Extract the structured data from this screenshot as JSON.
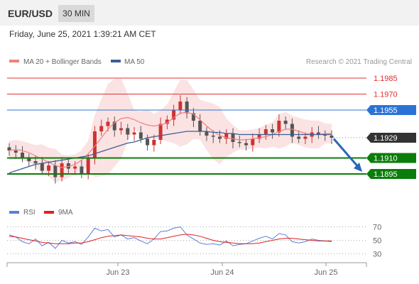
{
  "header": {
    "pair": "EUR/USD",
    "interval": "30 MIN"
  },
  "datetime": "Friday, June 25, 2021 1:39:21 AM CET",
  "legend": {
    "ma20": "MA 20 + Bollinger Bands",
    "ma50": "MA 50",
    "rsi": "RSI",
    "ma9": "9MA"
  },
  "watermark": "Research © 2021 Trading Central",
  "colors": {
    "resistance": "#e03030",
    "pivot": "#2a73d6",
    "support": "#0a7d0a",
    "current": "#333333",
    "ma20": "#f08080",
    "ma50": "#3a5f95",
    "bollinger_fill": "#fbe3e3",
    "rsi": "#5b7fd6",
    "rsi_ma": "#e02020",
    "candle_up": "#cc3333",
    "candle_down": "#555555",
    "arrow": "#2a66b8"
  },
  "chart_data": [
    {
      "type": "candlestick",
      "title": "EUR/USD",
      "x_ticks": [
        "Jun 23",
        "Jun 24",
        "Jun 25"
      ],
      "ylim": [
        1.1875,
        1.1995
      ],
      "levels": [
        {
          "value": 1.1985,
          "label": "1.1985",
          "kind": "resistance"
        },
        {
          "value": 1.197,
          "label": "1.1970",
          "kind": "resistance"
        },
        {
          "value": 1.1955,
          "label": "1.1955",
          "kind": "pivot"
        },
        {
          "value": 1.1929,
          "label": "1.1929",
          "kind": "current"
        },
        {
          "value": 1.191,
          "label": "1.1910",
          "kind": "support"
        },
        {
          "value": 1.1895,
          "label": "1.1895",
          "kind": "support"
        }
      ],
      "forecast_arrow": {
        "from": 1.1928,
        "to": 1.1897
      },
      "series": [
        {
          "name": "MA 20",
          "values": [
            1.1917,
            1.1918,
            1.1917,
            1.1915,
            1.1912,
            1.1909,
            1.1906,
            1.1903,
            1.1901,
            1.1902,
            1.1904,
            1.1908,
            1.1914,
            1.1921,
            1.1929,
            1.1937,
            1.1943,
            1.1947,
            1.1948,
            1.1946,
            1.1943,
            1.1941,
            1.194,
            1.1941,
            1.1943,
            1.1948,
            1.1952,
            1.1953,
            1.1951,
            1.1946,
            1.194,
            1.1935,
            1.1931,
            1.1929,
            1.1928,
            1.1927,
            1.1927,
            1.1928,
            1.1929,
            1.193,
            1.1932,
            1.1935,
            1.1937,
            1.1937,
            1.1935,
            1.1933,
            1.1932,
            1.1932,
            1.1933,
            1.1933
          ]
        },
        {
          "name": "MA 50",
          "values": [
            1.1896,
            1.1898,
            1.19,
            1.1902,
            1.1904,
            1.1905,
            1.1906,
            1.1907,
            1.1908,
            1.1909,
            1.191,
            1.1911,
            1.1912,
            1.1914,
            1.1916,
            1.1918,
            1.192,
            1.1922,
            1.1924,
            1.1925,
            1.1927,
            1.1929,
            1.193,
            1.1931,
            1.1932,
            1.1933,
            1.1934,
            1.1935,
            1.1935,
            1.1935,
            1.1935,
            1.1934,
            1.1934,
            1.1933,
            1.1933,
            1.1932,
            1.1932,
            1.1932,
            1.1932,
            1.1932,
            1.1932,
            1.1932,
            1.1932,
            1.1932,
            1.1932,
            1.1932,
            1.1932,
            1.1932,
            1.1932,
            1.1932
          ]
        },
        {
          "name": "Close",
          "values": [
            1.1917,
            1.1915,
            1.191,
            1.1907,
            1.1905,
            1.1898,
            1.1903,
            1.1892,
            1.1905,
            1.19,
            1.1902,
            1.1895,
            1.191,
            1.1935,
            1.194,
            1.1944,
            1.1936,
            1.1938,
            1.1932,
            1.1934,
            1.1928,
            1.1922,
            1.1927,
            1.1942,
            1.1946,
            1.1955,
            1.1963,
            1.1952,
            1.1945,
            1.1935,
            1.1931,
            1.193,
            1.1928,
            1.1933,
            1.1925,
            1.1924,
            1.1922,
            1.1928,
            1.1932,
            1.1937,
            1.1934,
            1.1945,
            1.1942,
            1.193,
            1.1928,
            1.193,
            1.1934,
            1.1932,
            1.1931,
            1.1929
          ]
        }
      ]
    },
    {
      "type": "line",
      "title": "RSI",
      "y_ticks": [
        70,
        50,
        30
      ],
      "ylim": [
        20,
        80
      ],
      "series": [
        {
          "name": "RSI",
          "values": [
            58,
            55,
            48,
            45,
            52,
            42,
            47,
            38,
            50,
            46,
            48,
            44,
            55,
            68,
            64,
            66,
            55,
            58,
            52,
            54,
            49,
            45,
            52,
            63,
            64,
            68,
            70,
            58,
            52,
            46,
            44,
            45,
            43,
            49,
            42,
            44,
            45,
            49,
            53,
            56,
            52,
            60,
            58,
            48,
            46,
            48,
            52,
            50,
            49,
            48
          ]
        },
        {
          "name": "9MA",
          "values": [
            56,
            55,
            53,
            51,
            49,
            47,
            46,
            45,
            45,
            45,
            46,
            46,
            48,
            51,
            54,
            56,
            57,
            58,
            57,
            56,
            55,
            53,
            52,
            52,
            54,
            56,
            58,
            59,
            58,
            56,
            53,
            50,
            48,
            47,
            46,
            45,
            45,
            45,
            46,
            48,
            50,
            52,
            53,
            53,
            52,
            51,
            50,
            49,
            49,
            49
          ]
        }
      ]
    }
  ]
}
